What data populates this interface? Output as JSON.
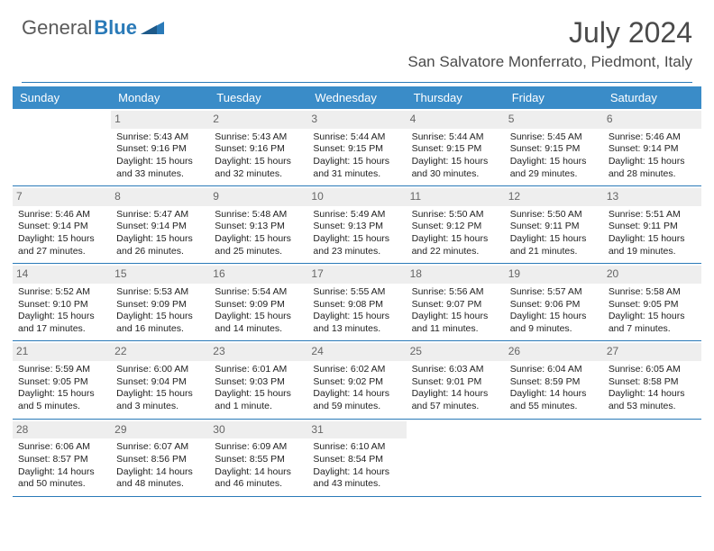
{
  "brand": {
    "name_part1": "General",
    "name_part2": "Blue"
  },
  "title": "July 2024",
  "location": "San Salvatore Monferrato, Piedmont, Italy",
  "colors": {
    "header_band": "#3a8cc8",
    "rule": "#2a7ab8",
    "daynum_bg": "#eeeeee",
    "text": "#222222",
    "muted": "#666666"
  },
  "weekdays": [
    "Sunday",
    "Monday",
    "Tuesday",
    "Wednesday",
    "Thursday",
    "Friday",
    "Saturday"
  ],
  "weeks": [
    [
      {
        "num": "",
        "lines": []
      },
      {
        "num": "1",
        "lines": [
          "Sunrise: 5:43 AM",
          "Sunset: 9:16 PM",
          "Daylight: 15 hours",
          "and 33 minutes."
        ]
      },
      {
        "num": "2",
        "lines": [
          "Sunrise: 5:43 AM",
          "Sunset: 9:16 PM",
          "Daylight: 15 hours",
          "and 32 minutes."
        ]
      },
      {
        "num": "3",
        "lines": [
          "Sunrise: 5:44 AM",
          "Sunset: 9:15 PM",
          "Daylight: 15 hours",
          "and 31 minutes."
        ]
      },
      {
        "num": "4",
        "lines": [
          "Sunrise: 5:44 AM",
          "Sunset: 9:15 PM",
          "Daylight: 15 hours",
          "and 30 minutes."
        ]
      },
      {
        "num": "5",
        "lines": [
          "Sunrise: 5:45 AM",
          "Sunset: 9:15 PM",
          "Daylight: 15 hours",
          "and 29 minutes."
        ]
      },
      {
        "num": "6",
        "lines": [
          "Sunrise: 5:46 AM",
          "Sunset: 9:14 PM",
          "Daylight: 15 hours",
          "and 28 minutes."
        ]
      }
    ],
    [
      {
        "num": "7",
        "lines": [
          "Sunrise: 5:46 AM",
          "Sunset: 9:14 PM",
          "Daylight: 15 hours",
          "and 27 minutes."
        ]
      },
      {
        "num": "8",
        "lines": [
          "Sunrise: 5:47 AM",
          "Sunset: 9:14 PM",
          "Daylight: 15 hours",
          "and 26 minutes."
        ]
      },
      {
        "num": "9",
        "lines": [
          "Sunrise: 5:48 AM",
          "Sunset: 9:13 PM",
          "Daylight: 15 hours",
          "and 25 minutes."
        ]
      },
      {
        "num": "10",
        "lines": [
          "Sunrise: 5:49 AM",
          "Sunset: 9:13 PM",
          "Daylight: 15 hours",
          "and 23 minutes."
        ]
      },
      {
        "num": "11",
        "lines": [
          "Sunrise: 5:50 AM",
          "Sunset: 9:12 PM",
          "Daylight: 15 hours",
          "and 22 minutes."
        ]
      },
      {
        "num": "12",
        "lines": [
          "Sunrise: 5:50 AM",
          "Sunset: 9:11 PM",
          "Daylight: 15 hours",
          "and 21 minutes."
        ]
      },
      {
        "num": "13",
        "lines": [
          "Sunrise: 5:51 AM",
          "Sunset: 9:11 PM",
          "Daylight: 15 hours",
          "and 19 minutes."
        ]
      }
    ],
    [
      {
        "num": "14",
        "lines": [
          "Sunrise: 5:52 AM",
          "Sunset: 9:10 PM",
          "Daylight: 15 hours",
          "and 17 minutes."
        ]
      },
      {
        "num": "15",
        "lines": [
          "Sunrise: 5:53 AM",
          "Sunset: 9:09 PM",
          "Daylight: 15 hours",
          "and 16 minutes."
        ]
      },
      {
        "num": "16",
        "lines": [
          "Sunrise: 5:54 AM",
          "Sunset: 9:09 PM",
          "Daylight: 15 hours",
          "and 14 minutes."
        ]
      },
      {
        "num": "17",
        "lines": [
          "Sunrise: 5:55 AM",
          "Sunset: 9:08 PM",
          "Daylight: 15 hours",
          "and 13 minutes."
        ]
      },
      {
        "num": "18",
        "lines": [
          "Sunrise: 5:56 AM",
          "Sunset: 9:07 PM",
          "Daylight: 15 hours",
          "and 11 minutes."
        ]
      },
      {
        "num": "19",
        "lines": [
          "Sunrise: 5:57 AM",
          "Sunset: 9:06 PM",
          "Daylight: 15 hours",
          "and 9 minutes."
        ]
      },
      {
        "num": "20",
        "lines": [
          "Sunrise: 5:58 AM",
          "Sunset: 9:05 PM",
          "Daylight: 15 hours",
          "and 7 minutes."
        ]
      }
    ],
    [
      {
        "num": "21",
        "lines": [
          "Sunrise: 5:59 AM",
          "Sunset: 9:05 PM",
          "Daylight: 15 hours",
          "and 5 minutes."
        ]
      },
      {
        "num": "22",
        "lines": [
          "Sunrise: 6:00 AM",
          "Sunset: 9:04 PM",
          "Daylight: 15 hours",
          "and 3 minutes."
        ]
      },
      {
        "num": "23",
        "lines": [
          "Sunrise: 6:01 AM",
          "Sunset: 9:03 PM",
          "Daylight: 15 hours",
          "and 1 minute."
        ]
      },
      {
        "num": "24",
        "lines": [
          "Sunrise: 6:02 AM",
          "Sunset: 9:02 PM",
          "Daylight: 14 hours",
          "and 59 minutes."
        ]
      },
      {
        "num": "25",
        "lines": [
          "Sunrise: 6:03 AM",
          "Sunset: 9:01 PM",
          "Daylight: 14 hours",
          "and 57 minutes."
        ]
      },
      {
        "num": "26",
        "lines": [
          "Sunrise: 6:04 AM",
          "Sunset: 8:59 PM",
          "Daylight: 14 hours",
          "and 55 minutes."
        ]
      },
      {
        "num": "27",
        "lines": [
          "Sunrise: 6:05 AM",
          "Sunset: 8:58 PM",
          "Daylight: 14 hours",
          "and 53 minutes."
        ]
      }
    ],
    [
      {
        "num": "28",
        "lines": [
          "Sunrise: 6:06 AM",
          "Sunset: 8:57 PM",
          "Daylight: 14 hours",
          "and 50 minutes."
        ]
      },
      {
        "num": "29",
        "lines": [
          "Sunrise: 6:07 AM",
          "Sunset: 8:56 PM",
          "Daylight: 14 hours",
          "and 48 minutes."
        ]
      },
      {
        "num": "30",
        "lines": [
          "Sunrise: 6:09 AM",
          "Sunset: 8:55 PM",
          "Daylight: 14 hours",
          "and 46 minutes."
        ]
      },
      {
        "num": "31",
        "lines": [
          "Sunrise: 6:10 AM",
          "Sunset: 8:54 PM",
          "Daylight: 14 hours",
          "and 43 minutes."
        ]
      },
      {
        "num": "",
        "lines": []
      },
      {
        "num": "",
        "lines": []
      },
      {
        "num": "",
        "lines": []
      }
    ]
  ]
}
